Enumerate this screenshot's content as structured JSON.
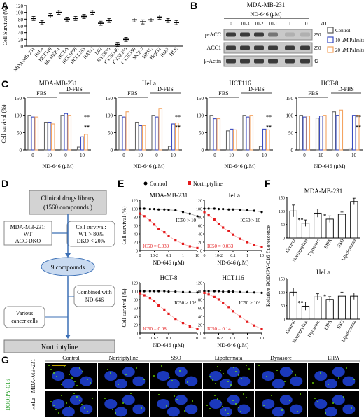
{
  "panel_labels": {
    "A": "A",
    "B": "B",
    "C": "C",
    "D": "D",
    "E": "E",
    "F": "F",
    "G": "G"
  },
  "chart_data": [
    {
      "id": "A",
      "type": "scatter",
      "ylabel": "Cell Survival (%)",
      "ylim": [
        0,
        120
      ],
      "yticks": [
        0,
        20,
        40,
        60,
        80,
        100,
        120
      ],
      "categories": [
        "MDA-MB-231",
        "HeLa",
        "HCT116",
        "SK-HEP-1",
        "HCT-8",
        "HCC1806",
        "HCCLM3",
        "HAEC",
        "L02",
        "KYSE30",
        "KYSE140",
        "KYSE150",
        "KYSE180",
        "MCF-7",
        "HPAC",
        "HepG2",
        "Huh7",
        "HLE"
      ],
      "values": [
        82,
        70,
        90,
        100,
        80,
        82,
        88,
        100,
        68,
        76,
        5,
        20,
        78,
        72,
        78,
        86,
        76,
        70
      ]
    },
    {
      "id": "B",
      "type": "table",
      "title": "MDA-MB-231",
      "xlabel": "ND-646 (μM)",
      "columns": [
        "0",
        "10-3",
        "10-2",
        "10-1",
        "1",
        "10"
      ],
      "kd_label": "kD",
      "rows": [
        {
          "name": "p-ACC",
          "kd": "250"
        },
        {
          "name": "ACC1",
          "kd": "250"
        },
        {
          "name": "β-Actin",
          "kd": "42"
        }
      ],
      "legend": [
        "Control",
        "10 μM Palmitate",
        "20 μM Palmitate"
      ],
      "legend_colors": [
        "#555555",
        "#3b4cc0",
        "#f4a460"
      ]
    },
    {
      "id": "C",
      "type": "bar",
      "ylabel": "Cell survival (%)",
      "xlabel": "ND-646 (μM)",
      "ylim": [
        0,
        150
      ],
      "yticks": [
        0,
        50,
        100,
        150
      ],
      "xticks": [
        "0",
        "10",
        "0",
        "10"
      ],
      "group_labels": [
        "FBS",
        "D-FBS"
      ],
      "series_colors": [
        "#666666",
        "#3b4cc0",
        "#f4a460"
      ],
      "subplots": [
        {
          "title": "MDA-MB-231",
          "values": [
            [
              100,
              95,
              95
            ],
            [
              80,
              80,
              75
            ],
            [
              100,
              105,
              100
            ],
            [
              8,
              38,
              45
            ]
          ],
          "sig": [
            "**",
            "**"
          ]
        },
        {
          "title": "HeLa",
          "values": [
            [
              100,
              95,
              110
            ],
            [
              80,
              70,
              70
            ],
            [
              100,
              95,
              120
            ],
            [
              10,
              75,
              78
            ]
          ],
          "sig": [
            "**",
            "**"
          ]
        },
        {
          "title": "HCT116",
          "values": [
            [
              100,
              90,
              90
            ],
            [
              55,
              60,
              58
            ],
            [
              100,
              95,
              100
            ],
            [
              10,
              60,
              58
            ]
          ],
          "sig": [
            "**",
            "**"
          ]
        },
        {
          "title": "HCT-8",
          "values": [
            [
              100,
              95,
              98
            ],
            [
              92,
              98,
              100
            ],
            [
              110,
              100,
              115
            ],
            [
              5,
              100,
              100
            ]
          ],
          "sig": [
            "**",
            "**"
          ]
        }
      ]
    },
    {
      "id": "E",
      "type": "line",
      "ylabel": "Cell survival (%)",
      "xlabel": "ND-646 (μM)",
      "ylim": [
        0,
        120
      ],
      "yticks": [
        0,
        20,
        40,
        60,
        80,
        100,
        120
      ],
      "xticks": [
        "0",
        "10-2",
        "0.1",
        "1",
        "10"
      ],
      "legend": [
        "Control",
        "Nortriptyline"
      ],
      "series_colors": [
        "#000000",
        "#e41a1c"
      ],
      "subplots": [
        {
          "title": "MDA-MB-231",
          "x": [
            0.001,
            0.002,
            0.005,
            0.01,
            0.02,
            0.05,
            0.1,
            0.3,
            1,
            3,
            10
          ],
          "control": [
            100,
            100,
            99,
            99,
            98,
            98,
            97,
            96,
            92,
            88,
            82
          ],
          "nortriptyline": [
            88,
            82,
            72,
            62,
            52,
            44,
            35,
            24,
            16,
            10,
            6
          ],
          "ic_control": "IC50 > 10",
          "ic_nort": "IC50 = 0.039"
        },
        {
          "title": "HeLa",
          "x": [
            0.001,
            0.002,
            0.005,
            0.01,
            0.02,
            0.05,
            0.1,
            0.3,
            1,
            3,
            10
          ],
          "control": [
            100,
            100,
            100,
            99,
            99,
            98,
            98,
            97,
            96,
            95,
            92
          ],
          "nortriptyline": [
            92,
            84,
            74,
            64,
            55,
            46,
            38,
            28,
            20,
            14,
            8
          ],
          "ic_control": "IC50 > 10",
          "ic_nort": "IC50 = 0.033"
        },
        {
          "title": "HCT-8",
          "x": [
            0.001,
            0.002,
            0.005,
            0.01,
            0.02,
            0.05,
            0.1,
            0.3,
            1,
            3,
            10
          ],
          "control": [
            100,
            100,
            100,
            100,
            100,
            100,
            99,
            99,
            98,
            98,
            97
          ],
          "nortriptyline": [
            95,
            90,
            84,
            76,
            66,
            56,
            46,
            34,
            24,
            16,
            10
          ],
          "ic_control": "IC50 > 10⁴",
          "ic_nort": "IC50 = 0.08"
        },
        {
          "title": "HCT116",
          "x": [
            0.001,
            0.002,
            0.005,
            0.01,
            0.02,
            0.05,
            0.1,
            0.3,
            1,
            3,
            10
          ],
          "control": [
            100,
            100,
            100,
            100,
            99,
            99,
            99,
            98,
            98,
            97,
            96
          ],
          "nortriptyline": [
            96,
            92,
            86,
            80,
            72,
            62,
            52,
            40,
            28,
            18,
            10
          ],
          "ic_control": "IC50 > 10⁴",
          "ic_nort": "IC50 = 0.14"
        }
      ]
    },
    {
      "id": "F",
      "type": "bar",
      "ylabel": "Relative BODIPY-C16 fluorescence",
      "ylim": [
        0,
        150
      ],
      "yticks": [
        0,
        50,
        100,
        150
      ],
      "categories": [
        "Control",
        "Nortriptyline",
        "Dynasore",
        "EIPA",
        "SSO",
        "Lipofermata"
      ],
      "subplots": [
        {
          "title": "MDA-MB-231",
          "values": [
            100,
            55,
            92,
            70,
            88,
            135
          ],
          "errors": [
            22,
            12,
            15,
            12,
            8,
            12
          ],
          "sig": [
            "",
            "**",
            "",
            "*",
            "",
            ""
          ]
        },
        {
          "title": "HeLa",
          "values": [
            100,
            48,
            82,
            73,
            85,
            85
          ],
          "errors": [
            15,
            15,
            12,
            10,
            15,
            12
          ],
          "sig": [
            "",
            "**",
            "",
            "*",
            "",
            ""
          ]
        }
      ]
    }
  ],
  "panel_d": {
    "library": "Clinical drugs  library",
    "library_count": "(1560 compounds )",
    "cells_box": "MDA-MB-231: WT ACC-DKO",
    "criteria": "Cell survival: WT > 80% DKO < 20%",
    "compounds": "9 compounds",
    "combined": "Combined with ND-646",
    "various": "Various cancer cells",
    "result": "Nortriptyline"
  },
  "panel_g": {
    "columns": [
      "Control",
      "Nortriptyline",
      "SSO",
      "Lipofermata",
      "Dynasore",
      "EIPA"
    ],
    "rows": [
      "MDA-MB-231",
      "HeLa"
    ],
    "stain_label": "BODIPY-C16"
  }
}
